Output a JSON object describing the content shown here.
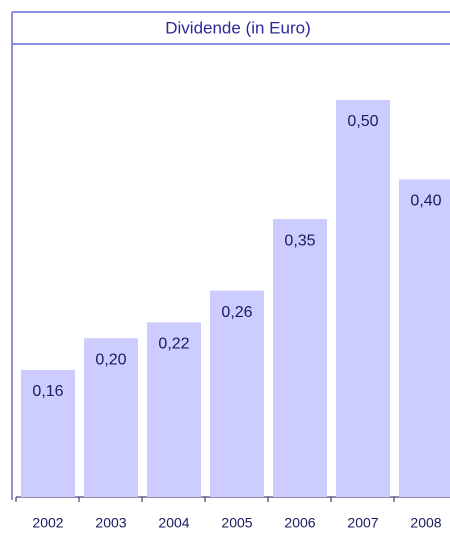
{
  "chart_data": {
    "type": "bar",
    "title": "Dividende (in Euro)",
    "categories": [
      "2002",
      "2003",
      "2004",
      "2005",
      "2006",
      "2007",
      "2008"
    ],
    "values": [
      0.16,
      0.2,
      0.22,
      0.26,
      0.35,
      0.5,
      0.4
    ],
    "value_labels": [
      "0,16",
      "0,20",
      "0,22",
      "0,26",
      "0,35",
      "0,50",
      "0,40"
    ],
    "color": "#ccccff"
  }
}
